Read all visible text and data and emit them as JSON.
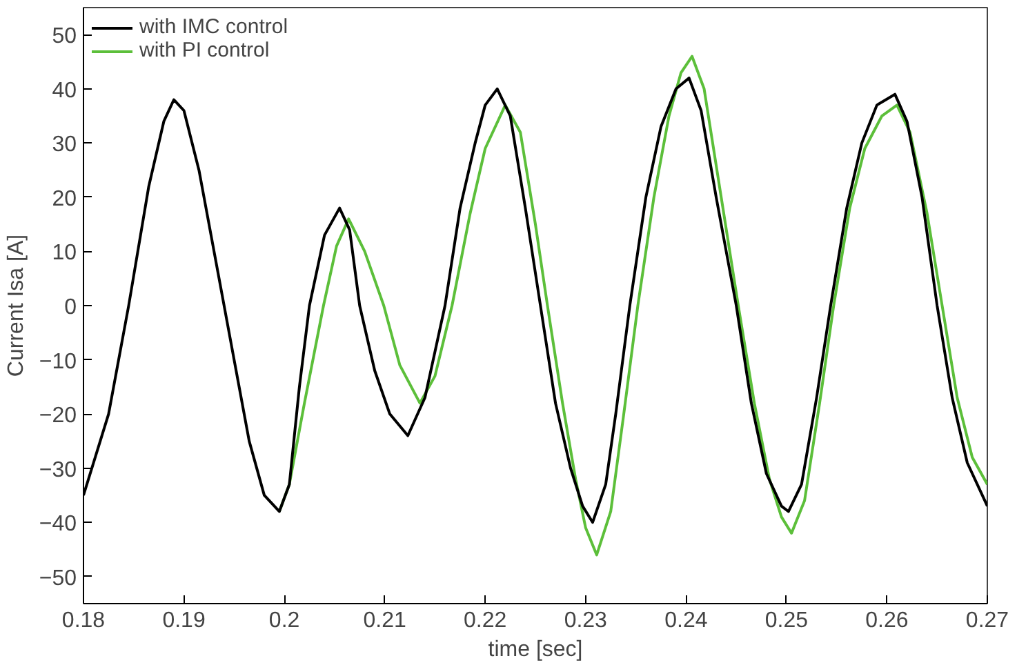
{
  "chart_data": {
    "type": "line",
    "xlabel": "time [sec]",
    "ylabel": "Current Isa [A]",
    "xlim": [
      0.18,
      0.27
    ],
    "ylim": [
      -55,
      55
    ],
    "xticks": [
      0.18,
      0.19,
      0.2,
      0.21,
      0.22,
      0.23,
      0.24,
      0.25,
      0.26,
      0.27
    ],
    "yticks": [
      {
        "value": -50,
        "label": "−50"
      },
      {
        "value": -40,
        "label": "−40"
      },
      {
        "value": -30,
        "label": "−30"
      },
      {
        "value": -20,
        "label": "−20"
      },
      {
        "value": -10,
        "label": "−10"
      },
      0,
      10,
      20,
      30,
      40,
      50
    ],
    "grid": false,
    "legend": "top left",
    "marker": "none",
    "line_style": "solid",
    "series": [
      {
        "name": "with IMC control",
        "color": "#000000",
        "x": [
          0.18,
          0.1825,
          0.1845,
          0.1865,
          0.188,
          0.189,
          0.19,
          0.1915,
          0.1935,
          0.195,
          0.1965,
          0.198,
          0.1995,
          0.2005,
          0.2015,
          0.2025,
          0.204,
          0.2055,
          0.2065,
          0.2075,
          0.209,
          0.2105,
          0.2123,
          0.214,
          0.216,
          0.2175,
          0.219,
          0.22,
          0.2212,
          0.2225,
          0.224,
          0.2255,
          0.227,
          0.2285,
          0.2297,
          0.2307,
          0.232,
          0.233,
          0.2344,
          0.236,
          0.2375,
          0.239,
          0.2403,
          0.2415,
          0.243,
          0.245,
          0.2465,
          0.248,
          0.2495,
          0.2502,
          0.2515,
          0.253,
          0.2544,
          0.256,
          0.2575,
          0.259,
          0.2608,
          0.262,
          0.2635,
          0.265,
          0.2665,
          0.268,
          0.2695,
          0.27
        ],
        "values": [
          -35,
          -20,
          0,
          22,
          34,
          38,
          36,
          25,
          5,
          -10,
          -25,
          -35,
          -38,
          -33,
          -15,
          0,
          13,
          18,
          14,
          0,
          -12,
          -20,
          -24,
          -17,
          0,
          18,
          30,
          37,
          40,
          35,
          18,
          0,
          -18,
          -30,
          -37,
          -40,
          -33,
          -20,
          0,
          20,
          33,
          40,
          42,
          36,
          20,
          0,
          -18,
          -31,
          -37,
          -38,
          -33,
          -17,
          0,
          18,
          30,
          37,
          39,
          34,
          20,
          0,
          -17,
          -29,
          -35,
          -37
        ]
      },
      {
        "name": "with PI control",
        "color": "#5cbf3a",
        "x": [
          0.1995,
          0.2005,
          0.202,
          0.2039,
          0.2052,
          0.2064,
          0.208,
          0.2099,
          0.2115,
          0.2135,
          0.215,
          0.2167,
          0.2185,
          0.22,
          0.222,
          0.2235,
          0.225,
          0.2262,
          0.2277,
          0.229,
          0.23,
          0.2311,
          0.2325,
          0.2338,
          0.2352,
          0.2368,
          0.2383,
          0.2395,
          0.2406,
          0.2418,
          0.2435,
          0.2452,
          0.2468,
          0.2483,
          0.2495,
          0.2505,
          0.2518,
          0.2533,
          0.2547,
          0.2563,
          0.2578,
          0.2595,
          0.261,
          0.2623,
          0.264,
          0.2655,
          0.267,
          0.2685,
          0.27
        ],
        "values": [
          -38,
          -33,
          -18,
          0,
          11,
          16,
          10,
          0,
          -11,
          -18,
          -13,
          0,
          17,
          29,
          37,
          32,
          15,
          0,
          -18,
          -32,
          -41,
          -46,
          -38,
          -20,
          0,
          20,
          35,
          43,
          46,
          40,
          20,
          0,
          -18,
          -32,
          -39,
          -42,
          -36,
          -18,
          0,
          18,
          29,
          35,
          37,
          32,
          17,
          0,
          -17,
          -28,
          -33
        ]
      }
    ]
  }
}
